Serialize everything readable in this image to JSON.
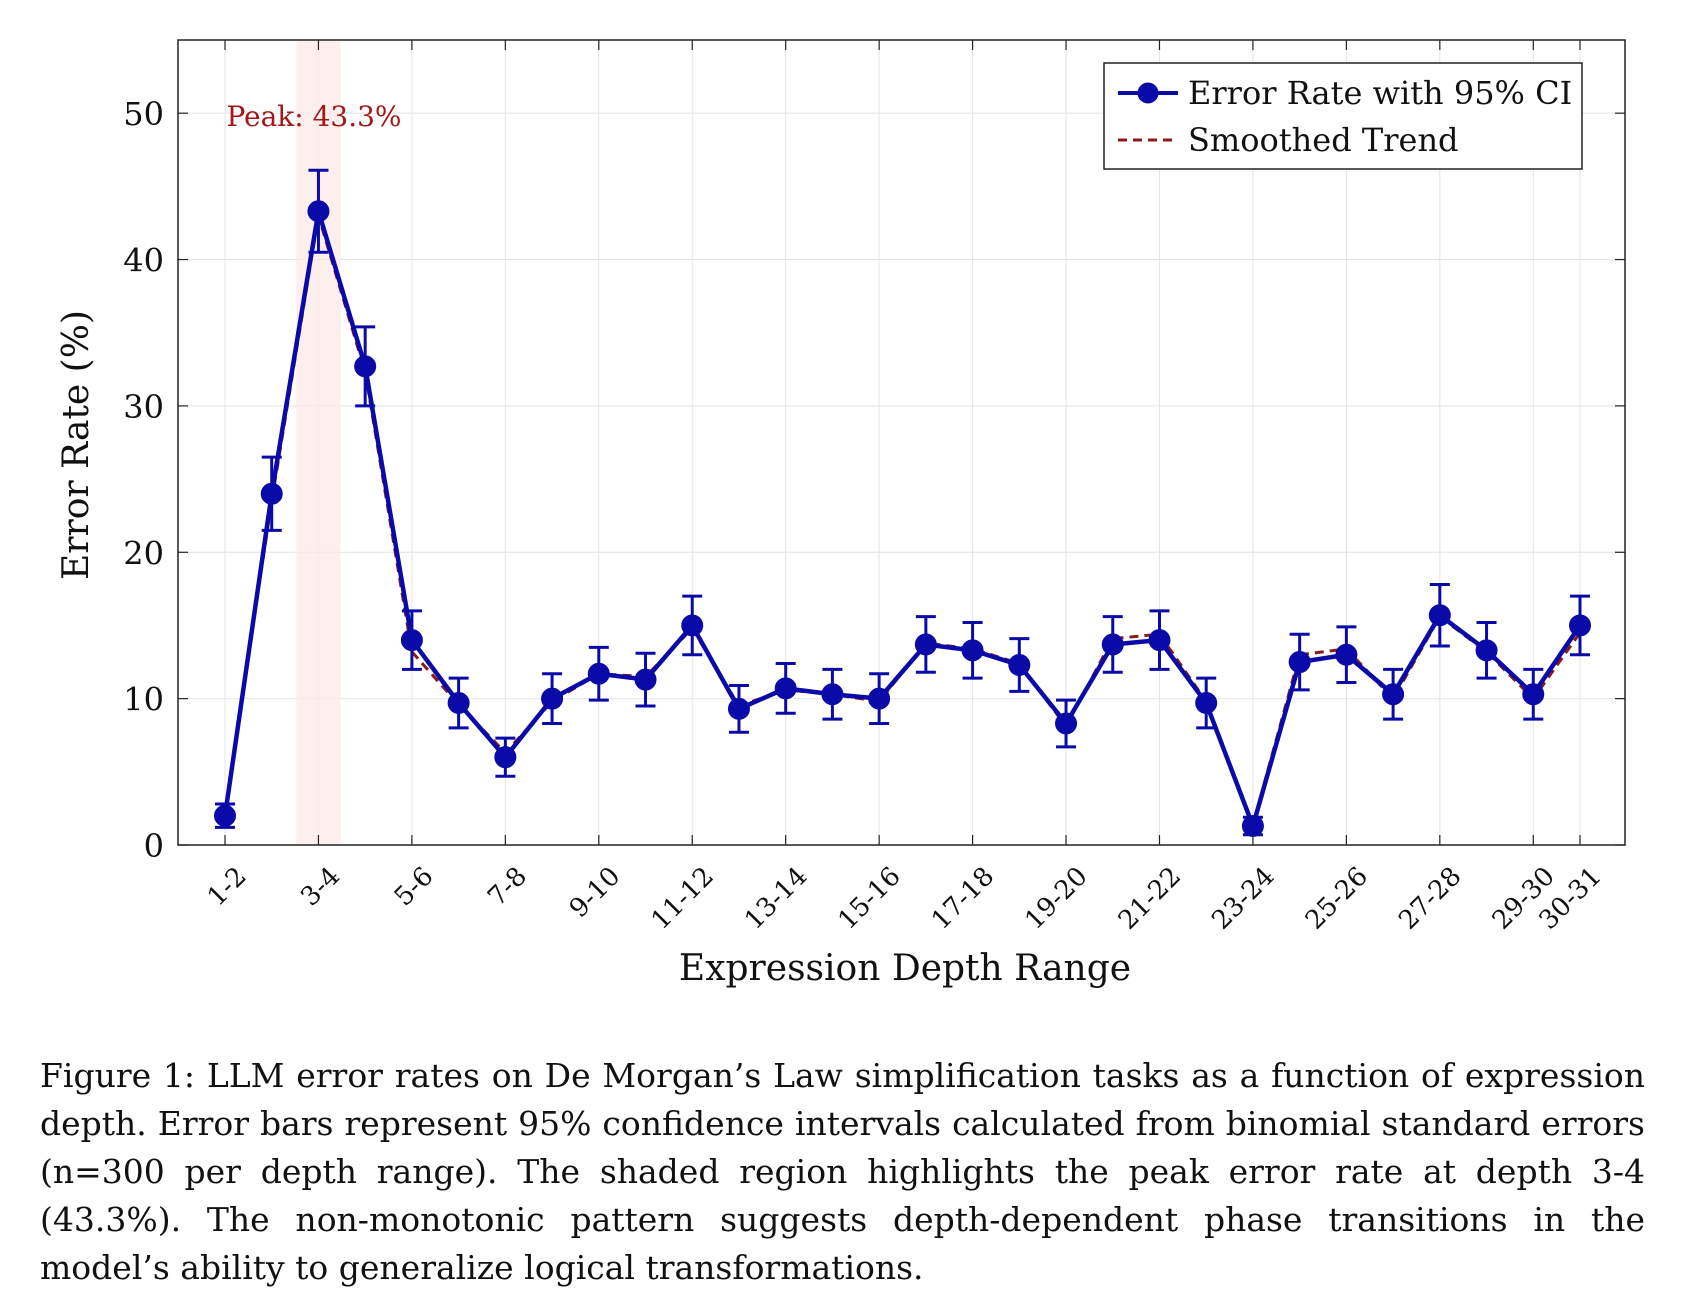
{
  "chart_data": {
    "type": "line",
    "categories": [
      "1-2",
      "2-3",
      "3-4",
      "4-5",
      "5-6",
      "6-7",
      "7-8",
      "8-9",
      "9-10",
      "10-11",
      "11-12",
      "12-13",
      "13-14",
      "14-15",
      "15-16",
      "16-17",
      "17-18",
      "18-19",
      "19-20",
      "20-21",
      "21-22",
      "22-23",
      "23-24",
      "24-25",
      "25-26",
      "26-27",
      "27-28",
      "28-29",
      "29-30",
      "30-31"
    ],
    "tick_labels": [
      "1-2",
      "3-4",
      "5-6",
      "7-8",
      "9-10",
      "11-12",
      "13-14",
      "15-16",
      "17-18",
      "19-20",
      "21-22",
      "23-24",
      "25-26",
      "27-28",
      "29-30",
      "30-31"
    ],
    "series": [
      {
        "name": "Error Rate with 95% CI",
        "color": "#0a0aa8",
        "values": [
          2.0,
          24.0,
          43.3,
          32.7,
          14.0,
          9.7,
          6.0,
          10.0,
          11.7,
          11.3,
          15.0,
          9.3,
          10.7,
          10.3,
          10.0,
          13.7,
          13.3,
          12.3,
          8.3,
          13.7,
          14.0,
          9.7,
          1.3,
          12.5,
          13.0,
          10.3,
          15.7,
          13.3,
          10.3,
          15.0
        ],
        "ci_low": [
          1.2,
          21.5,
          40.5,
          30.0,
          12.0,
          8.0,
          4.7,
          8.3,
          9.9,
          9.5,
          13.0,
          7.7,
          9.0,
          8.6,
          8.3,
          11.8,
          11.4,
          10.5,
          6.7,
          11.8,
          12.0,
          8.0,
          0.7,
          10.6,
          11.1,
          8.6,
          13.6,
          11.4,
          8.6,
          13.0
        ],
        "ci_high": [
          2.8,
          26.5,
          46.1,
          35.4,
          16.0,
          11.4,
          7.3,
          11.7,
          13.5,
          13.1,
          17.0,
          10.9,
          12.4,
          12.0,
          11.7,
          15.6,
          15.2,
          14.1,
          9.9,
          15.6,
          16.0,
          11.4,
          1.9,
          14.4,
          14.9,
          12.0,
          17.8,
          15.2,
          12.0,
          17.0
        ]
      },
      {
        "name": "Smoothed Trend",
        "color": "#8b1a1a",
        "values": [
          2.3,
          23.5,
          43.0,
          32.3,
          13.2,
          9.6,
          6.3,
          9.8,
          11.7,
          11.5,
          14.8,
          9.5,
          10.6,
          10.3,
          9.8,
          13.8,
          13.4,
          12.4,
          8.1,
          14.1,
          14.4,
          9.8,
          1.4,
          13.0,
          13.4,
          10.0,
          15.6,
          13.2,
          10.0,
          14.5
        ]
      }
    ],
    "xlabel": "Expression Depth Range",
    "ylabel": "Error Rate (%)",
    "ylim": [
      0,
      55
    ],
    "yticks": [
      0,
      10,
      20,
      30,
      40,
      50
    ],
    "grid": true,
    "legend": "top-right",
    "highlight_category": "3-4",
    "annotation": "Peak: 43.3%"
  },
  "caption": "Figure 1: LLM error rates on De Morgan’s Law simplification tasks as a function of expression depth. Error bars represent 95% confidence intervals calculated from binomial standard errors (n=300 per depth range). The shaded region highlights the peak error rate at depth 3-4 (43.3%). The non-monotonic pattern suggests depth-dependent phase transitions in the model’s ability to generalize logical transformations."
}
